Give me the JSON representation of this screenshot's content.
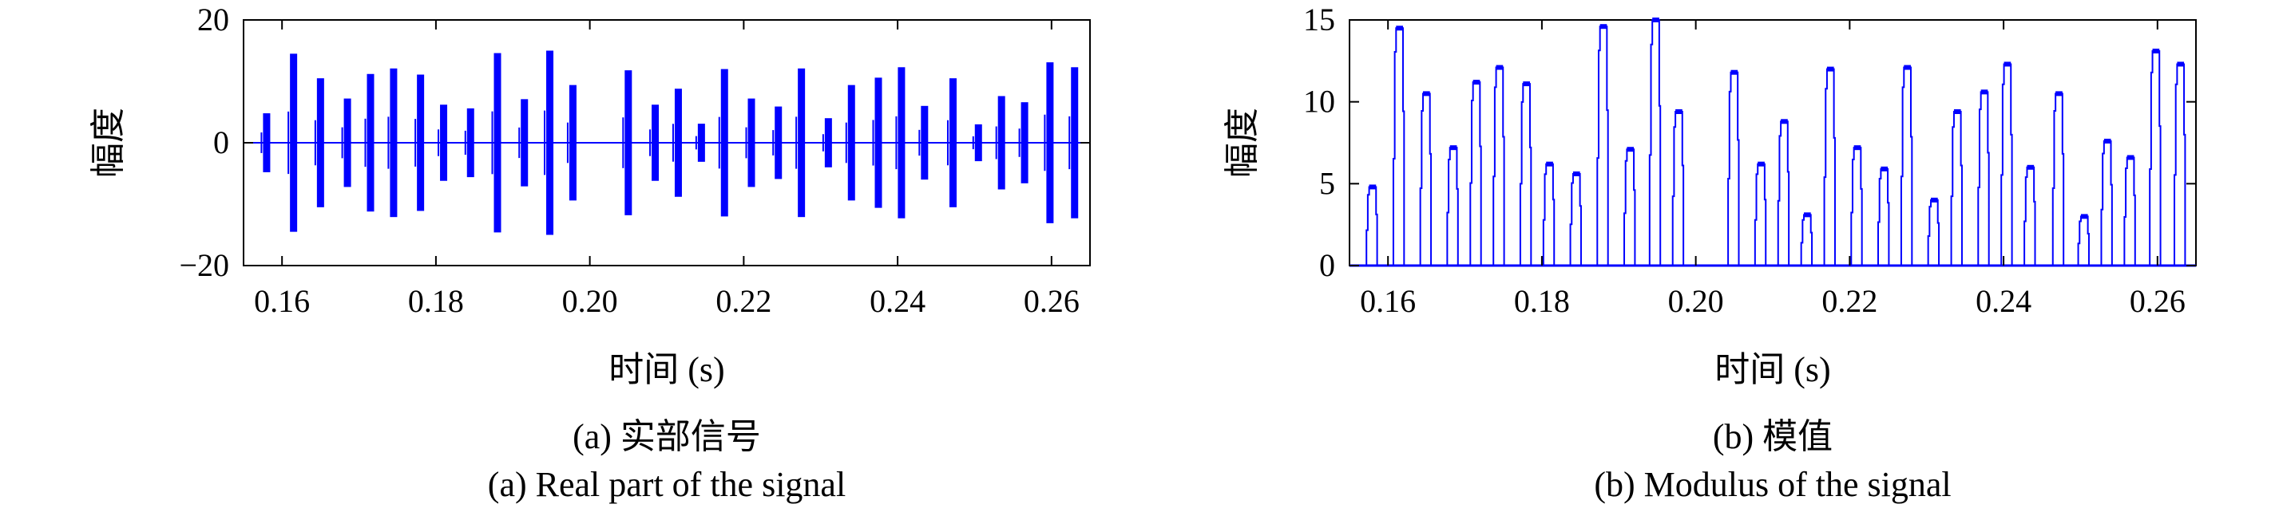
{
  "figure": {
    "panels": [
      {
        "caption_zh": "(a) 实部信号",
        "caption_en": "(a) Real part of the signal"
      },
      {
        "caption_zh": "(b) 模值",
        "caption_en": "(b) Modulus of the signal"
      }
    ]
  },
  "chart_data": [
    {
      "type": "line",
      "xlabel": "时间 (s)",
      "ylabel": "幅度",
      "xlim": [
        0.155,
        0.265
      ],
      "ylim": [
        -20,
        20
      ],
      "xticks": [
        "0.16",
        "0.18",
        "0.20",
        "0.22",
        "0.24",
        "0.26"
      ],
      "yticks": [
        "−20",
        "0",
        "20"
      ],
      "grid": false,
      "color": "#0000ff",
      "bursts": [
        {
          "t": 0.158,
          "amp": 4.8
        },
        {
          "t": 0.1615,
          "amp": 14.5
        },
        {
          "t": 0.165,
          "amp": 10.5
        },
        {
          "t": 0.1685,
          "amp": 7.2
        },
        {
          "t": 0.1715,
          "amp": 11.2
        },
        {
          "t": 0.1745,
          "amp": 12.1
        },
        {
          "t": 0.178,
          "amp": 11.1
        },
        {
          "t": 0.181,
          "amp": 6.2
        },
        {
          "t": 0.1845,
          "amp": 5.6
        },
        {
          "t": 0.188,
          "amp": 14.6
        },
        {
          "t": 0.1915,
          "amp": 7.1
        },
        {
          "t": 0.1948,
          "amp": 15.0
        },
        {
          "t": 0.1978,
          "amp": 9.4
        },
        {
          "t": 0.205,
          "amp": 11.8
        },
        {
          "t": 0.2085,
          "amp": 6.2
        },
        {
          "t": 0.2115,
          "amp": 8.8
        },
        {
          "t": 0.2145,
          "amp": 3.1
        },
        {
          "t": 0.2175,
          "amp": 12.0
        },
        {
          "t": 0.221,
          "amp": 7.2
        },
        {
          "t": 0.2245,
          "amp": 5.9
        },
        {
          "t": 0.2275,
          "amp": 12.1
        },
        {
          "t": 0.231,
          "amp": 4.0
        },
        {
          "t": 0.234,
          "amp": 9.4
        },
        {
          "t": 0.2375,
          "amp": 10.6
        },
        {
          "t": 0.2405,
          "amp": 12.3
        },
        {
          "t": 0.2435,
          "amp": 6.0
        },
        {
          "t": 0.2472,
          "amp": 10.5
        },
        {
          "t": 0.2505,
          "amp": 3.0
        },
        {
          "t": 0.2535,
          "amp": 7.6
        },
        {
          "t": 0.2565,
          "amp": 6.6
        },
        {
          "t": 0.2598,
          "amp": 13.1
        },
        {
          "t": 0.263,
          "amp": 12.3
        }
      ]
    },
    {
      "type": "line",
      "xlabel": "时间 (s)",
      "ylabel": "幅度",
      "xlim": [
        0.155,
        0.265
      ],
      "ylim": [
        0,
        15
      ],
      "xticks": [
        "0.16",
        "0.18",
        "0.20",
        "0.22",
        "0.24",
        "0.26"
      ],
      "yticks": [
        "0",
        "5",
        "10",
        "15"
      ],
      "grid": false,
      "color": "#0000ff",
      "bursts": [
        {
          "t": 0.158,
          "amp": 4.8
        },
        {
          "t": 0.1615,
          "amp": 14.5
        },
        {
          "t": 0.165,
          "amp": 10.5
        },
        {
          "t": 0.1685,
          "amp": 7.2
        },
        {
          "t": 0.1715,
          "amp": 11.2
        },
        {
          "t": 0.1745,
          "amp": 12.1
        },
        {
          "t": 0.178,
          "amp": 11.1
        },
        {
          "t": 0.181,
          "amp": 6.2
        },
        {
          "t": 0.1845,
          "amp": 5.6
        },
        {
          "t": 0.188,
          "amp": 14.6
        },
        {
          "t": 0.1915,
          "amp": 7.1
        },
        {
          "t": 0.1948,
          "amp": 15.0
        },
        {
          "t": 0.1978,
          "amp": 9.4
        },
        {
          "t": 0.205,
          "amp": 11.8
        },
        {
          "t": 0.2085,
          "amp": 6.2
        },
        {
          "t": 0.2115,
          "amp": 8.8
        },
        {
          "t": 0.2145,
          "amp": 3.1
        },
        {
          "t": 0.2175,
          "amp": 12.0
        },
        {
          "t": 0.221,
          "amp": 7.2
        },
        {
          "t": 0.2245,
          "amp": 5.9
        },
        {
          "t": 0.2275,
          "amp": 12.1
        },
        {
          "t": 0.231,
          "amp": 4.0
        },
        {
          "t": 0.234,
          "amp": 9.4
        },
        {
          "t": 0.2375,
          "amp": 10.6
        },
        {
          "t": 0.2405,
          "amp": 12.3
        },
        {
          "t": 0.2435,
          "amp": 6.0
        },
        {
          "t": 0.2472,
          "amp": 10.5
        },
        {
          "t": 0.2505,
          "amp": 3.0
        },
        {
          "t": 0.2535,
          "amp": 7.6
        },
        {
          "t": 0.2565,
          "amp": 6.6
        },
        {
          "t": 0.2598,
          "amp": 13.1
        },
        {
          "t": 0.263,
          "amp": 12.3
        }
      ]
    }
  ]
}
